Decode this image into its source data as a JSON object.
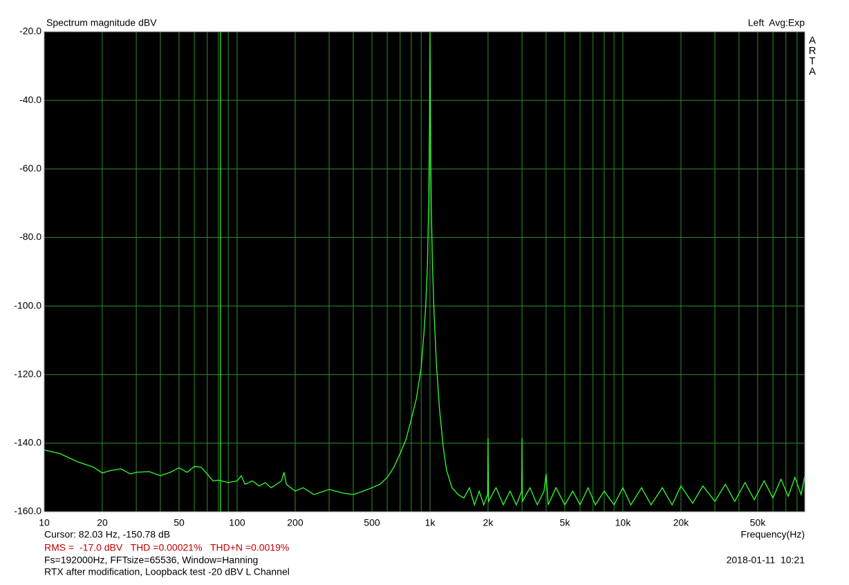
{
  "chart_data": {
    "type": "line",
    "title": "Spectrum magnitude dBV",
    "status": "Left  Avg:Exp",
    "brand": "ARTA",
    "x_label": "Frequency(Hz)",
    "cursor_text": "Cursor: 82.03 Hz, -150.78 dB",
    "cursor_x": 82.03,
    "measure_text": "RMS =  -17.0 dBV   THD =0.00021%   THD+N =0.0019%",
    "settings_text": "Fs=192000Hz, FFTsize=65536, Window=Hanning",
    "note_text": "RTX after modification, Loopback test -20 dBV L Channel",
    "date_text": "2018-01-11  10:21",
    "x_scale": "log",
    "grid": true,
    "background": "#000000",
    "grid_color": "#2f8f2f",
    "xlim": [
      10,
      87700
    ],
    "ylim": [
      -160,
      -20
    ],
    "xticks": [
      10,
      20,
      50,
      100,
      200,
      500,
      {
        "value": 1000,
        "label": "1k"
      },
      {
        "value": 2000,
        "label": "2k"
      },
      {
        "value": 5000,
        "label": "5k"
      },
      {
        "value": 10000,
        "label": "10k"
      },
      {
        "value": 20000,
        "label": "20k"
      },
      {
        "value": 50000,
        "label": "50k"
      }
    ],
    "x_minor_ticks": [
      30,
      40,
      60,
      70,
      80,
      90,
      300,
      400,
      600,
      700,
      800,
      900,
      3000,
      4000,
      6000,
      7000,
      8000,
      9000,
      30000,
      40000,
      60000,
      70000,
      80000
    ],
    "yticks": [
      {
        "value": -20,
        "label": "-20.0"
      },
      {
        "value": -40,
        "label": "-40.0"
      },
      {
        "value": -60,
        "label": "-60.0"
      },
      {
        "value": -80,
        "label": "-80.0"
      },
      {
        "value": -100,
        "label": "-100.0"
      },
      {
        "value": -120,
        "label": "-120.0"
      },
      {
        "value": -140,
        "label": "-140.0"
      },
      {
        "value": -160,
        "label": "-160.0"
      }
    ],
    "x": [
      10,
      12,
      15,
      18,
      20,
      22,
      25,
      28,
      30,
      35,
      40,
      45,
      50,
      55,
      60,
      65,
      70,
      75,
      80,
      90,
      100,
      105,
      110,
      120,
      130,
      140,
      150,
      160,
      170,
      175,
      180,
      200,
      220,
      250,
      300,
      350,
      400,
      450,
      500,
      550,
      600,
      650,
      700,
      750,
      800,
      850,
      900,
      930,
      950,
      970,
      985,
      995,
      1000,
      1005,
      1015,
      1030,
      1050,
      1080,
      1120,
      1170,
      1220,
      1300,
      1400,
      1500,
      1600,
      1700,
      1800,
      1900,
      1990,
      2000,
      2010,
      2200,
      2400,
      2600,
      2800,
      2990,
      3000,
      3010,
      3300,
      3600,
      3900,
      4000,
      4100,
      4500,
      5000,
      5500,
      6000,
      6600,
      7200,
      8000,
      9000,
      10000,
      11000,
      12500,
      14000,
      16000,
      18000,
      20000,
      23000,
      26000,
      30000,
      34000,
      38000,
      43000,
      48000,
      54000,
      60000,
      66000,
      72000,
      78000,
      84000,
      87700
    ],
    "series": [
      {
        "color": "#33ff33",
        "values": [
          -142,
          -143,
          -145.5,
          -147,
          -148.7,
          -148,
          -147.5,
          -149,
          -148.5,
          -148.3,
          -149.5,
          -148.5,
          -147.2,
          -148.5,
          -146.8,
          -147,
          -149,
          -151,
          -150.8,
          -151.5,
          -151,
          -149.5,
          -152,
          -151,
          -152.5,
          -151.5,
          -153,
          -152,
          -151,
          -148.5,
          -152,
          -154,
          -153,
          -155,
          -153.5,
          -154.5,
          -155,
          -154,
          -153,
          -152,
          -150,
          -147,
          -143,
          -139,
          -133,
          -127,
          -118,
          -108,
          -100,
          -88,
          -70,
          -45,
          -20,
          -45,
          -70,
          -88,
          -102,
          -117,
          -130,
          -141,
          -148,
          -153,
          -155,
          -156,
          -153,
          -158,
          -154,
          -158,
          -155,
          -138.5,
          -157,
          -153,
          -158,
          -154,
          -158,
          -154,
          -138.5,
          -157,
          -153,
          -158,
          -154,
          -149,
          -158,
          -153,
          -158,
          -154,
          -158,
          -153,
          -158,
          -154,
          -158,
          -153,
          -158,
          -153,
          -158,
          -153,
          -158,
          -152.5,
          -157.5,
          -152.5,
          -157,
          -152,
          -157,
          -151.5,
          -156.5,
          -151,
          -156,
          -150.5,
          -155.5,
          -150,
          -155,
          -149.5
        ]
      }
    ]
  }
}
